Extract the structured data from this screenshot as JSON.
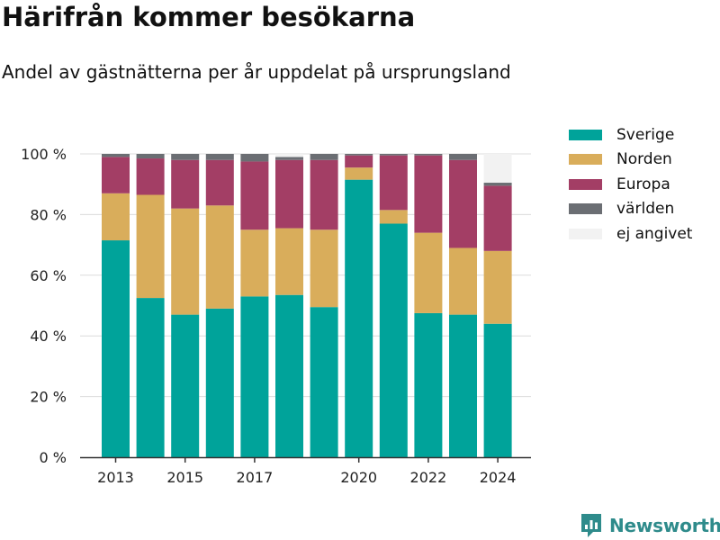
{
  "header": {
    "title": "Härifrån kommer besökarna",
    "subtitle": "Andel av gästnätterna per år uppdelat på ursprungsland"
  },
  "chart_data": {
    "type": "bar",
    "stacked": true,
    "x": [
      2013,
      2014,
      2015,
      2016,
      2017,
      2018,
      2019,
      2020,
      2021,
      2022,
      2023,
      2024
    ],
    "x_ticks": [
      "2013",
      "2015",
      "2017",
      "2020",
      "2022",
      "2024"
    ],
    "y_ticks": [
      "0 %",
      "20 %",
      "40 %",
      "60 %",
      "80 %",
      "100 %"
    ],
    "ylim": [
      0,
      100
    ],
    "grid": true,
    "legend_position": "right",
    "series": [
      {
        "name": "Sverige",
        "color": "#00a39a",
        "values": [
          71.5,
          52.5,
          47,
          49,
          53,
          53.5,
          49.5,
          91.5,
          77,
          47.5,
          47,
          44
        ]
      },
      {
        "name": "Norden",
        "color": "#d9ad5b",
        "values": [
          15.5,
          34,
          35,
          34,
          22,
          22,
          25.5,
          4,
          4.5,
          26.5,
          22,
          24
        ]
      },
      {
        "name": "Europa",
        "color": "#a33e65",
        "values": [
          12,
          12,
          16,
          15,
          22.5,
          22.5,
          23,
          4,
          18,
          25.5,
          29,
          21.5
        ]
      },
      {
        "name": "världen",
        "color": "#6b6e73",
        "values": [
          1,
          1.5,
          2,
          2,
          2.5,
          1,
          2,
          0.5,
          0.5,
          0.5,
          2,
          1
        ]
      },
      {
        "name": "ej angivet",
        "color": "#f2f2f2",
        "values": [
          0,
          0,
          0,
          0,
          0,
          1,
          0,
          0,
          0,
          0,
          0,
          9.5
        ]
      }
    ]
  },
  "brand": {
    "name": "Newsworthy",
    "icon": "newsworthy-logo-icon",
    "color": "#2e8b8b"
  }
}
